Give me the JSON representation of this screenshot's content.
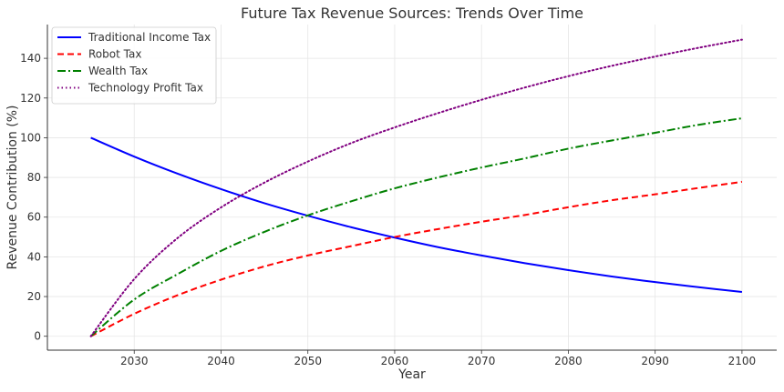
{
  "chart_data": {
    "type": "line",
    "title": "Future Tax Revenue Sources: Trends Over Time",
    "xlabel": "Year",
    "ylabel": "Revenue Contribution (%)",
    "xlim": [
      2020,
      2104
    ],
    "ylim": [
      -7,
      157
    ],
    "xticks": [
      2030,
      2040,
      2050,
      2060,
      2070,
      2080,
      2090,
      2100
    ],
    "yticks": [
      0,
      20,
      40,
      60,
      80,
      100,
      120,
      140
    ],
    "grid": true,
    "legend_position": "top-left",
    "x": [
      2025,
      2030,
      2035,
      2040,
      2045,
      2050,
      2055,
      2060,
      2065,
      2070,
      2075,
      2080,
      2085,
      2090,
      2095,
      2100
    ],
    "series": [
      {
        "name": "Traditional Income Tax",
        "color": "#0000ff",
        "style": "solid",
        "values": [
          100,
          90.5,
          81.9,
          74.1,
          67.0,
          60.7,
          54.9,
          49.7,
          44.9,
          40.7,
          36.8,
          33.3,
          30.1,
          27.3,
          24.7,
          22.3
        ]
      },
      {
        "name": "Robot Tax",
        "color": "#ff0000",
        "style": "dashed",
        "values": [
          0,
          11.3,
          20.7,
          28.5,
          35.2,
          40.7,
          45.4,
          50.0,
          54.0,
          57.7,
          61.1,
          65.0,
          68.5,
          71.5,
          74.7,
          77.8
        ]
      },
      {
        "name": "Wealth Tax",
        "color": "#008000",
        "style": "dashdot",
        "values": [
          0,
          18.5,
          31.3,
          43.0,
          52.6,
          60.9,
          68.0,
          74.5,
          80.0,
          85.0,
          89.6,
          94.5,
          98.6,
          102.5,
          106.5,
          109.8
        ]
      },
      {
        "name": "Technology Profit Tax",
        "color": "#800080",
        "style": "dotted",
        "values": [
          0,
          28.8,
          49.5,
          64.9,
          77.4,
          88.0,
          97.3,
          105.2,
          112.4,
          119.1,
          125.3,
          131.0,
          136.2,
          140.9,
          145.3,
          149.4
        ]
      }
    ]
  }
}
